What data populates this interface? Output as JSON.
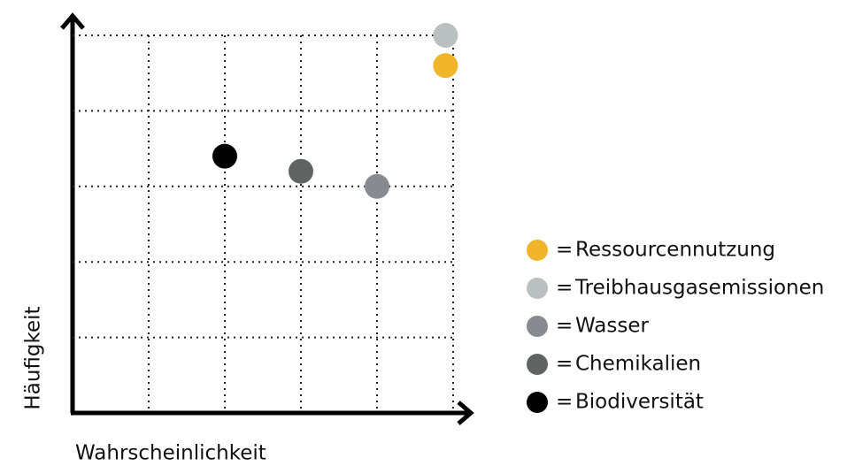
{
  "chart_data": {
    "type": "scatter",
    "x_label": "Wahrscheinlichkeit",
    "y_label": "Häufigkeit",
    "xlim": [
      0,
      5
    ],
    "ylim": [
      0,
      5
    ],
    "xticks": [
      1,
      2,
      3,
      4,
      5
    ],
    "yticks": [
      1,
      2,
      3,
      4,
      5
    ],
    "grid": true,
    "legend": "right",
    "series": [
      {
        "name": "Ressourcennutzung",
        "color": "#f1b52c",
        "x": [
          4.9
        ],
        "y": [
          4.6
        ]
      },
      {
        "name": "Treibhausgasemissionen",
        "color": "#babfbf",
        "x": [
          4.9
        ],
        "y": [
          5.0
        ]
      },
      {
        "name": "Wasser",
        "color": "#878b8f",
        "x": [
          4.0
        ],
        "y": [
          3.0
        ]
      },
      {
        "name": "Chemikalien",
        "color": "#5f6462",
        "x": [
          3.0
        ],
        "y": [
          3.2
        ]
      },
      {
        "name": "Biodiversität",
        "color": "#000000",
        "x": [
          2.0
        ],
        "y": [
          3.4
        ]
      }
    ]
  }
}
